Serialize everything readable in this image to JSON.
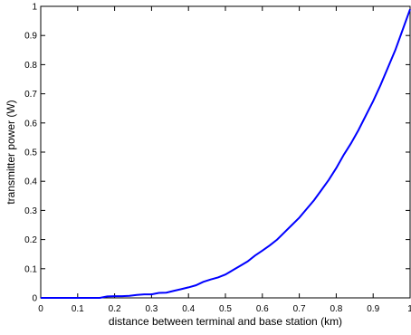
{
  "chart_data": {
    "type": "line",
    "title": "",
    "xlabel": "distance between terminal and base station (km)",
    "ylabel": "transmitter power (W)",
    "xlim": [
      0,
      1
    ],
    "ylim": [
      0,
      1
    ],
    "grid": false,
    "line_color": "#0000ff",
    "x_ticks": [
      0,
      0.1,
      0.2,
      0.3,
      0.4,
      0.5,
      0.6,
      0.7,
      0.8,
      0.9,
      1
    ],
    "x_tick_labels": [
      "0",
      "0.1",
      "0.2",
      "0.3",
      "0.4",
      "0.5",
      "0.6",
      "0.7",
      "0.8",
      "0.9",
      "1"
    ],
    "y_ticks": [
      0,
      0.1,
      0.2,
      0.3,
      0.4,
      0.5,
      0.6,
      0.7,
      0.8,
      0.9,
      1
    ],
    "y_tick_labels": [
      "0",
      "0.1",
      "0.2",
      "0.3",
      "0.4",
      "0.5",
      "0.6",
      "0.7",
      "0.8",
      "0.9",
      "1"
    ],
    "series": [
      {
        "x": [
          0,
          0.16,
          0.18,
          0.2,
          0.22,
          0.24,
          0.26,
          0.28,
          0.3,
          0.32,
          0.34,
          0.36,
          0.38,
          0.4,
          0.42,
          0.44,
          0.46,
          0.48,
          0.5,
          0.52,
          0.54,
          0.56,
          0.58,
          0.6,
          0.62,
          0.64,
          0.66,
          0.68,
          0.7,
          0.72,
          0.74,
          0.76,
          0.78,
          0.8,
          0.82,
          0.84,
          0.86,
          0.88,
          0.9,
          0.92,
          0.94,
          0.96,
          0.98,
          1.0
        ],
        "y": [
          0,
          0,
          0.005,
          0.006,
          0.006,
          0.007,
          0.01,
          0.012,
          0.012,
          0.017,
          0.018,
          0.024,
          0.03,
          0.036,
          0.043,
          0.055,
          0.063,
          0.07,
          0.08,
          0.095,
          0.11,
          0.125,
          0.145,
          0.162,
          0.18,
          0.2,
          0.225,
          0.25,
          0.275,
          0.305,
          0.335,
          0.37,
          0.405,
          0.445,
          0.49,
          0.53,
          0.575,
          0.625,
          0.675,
          0.73,
          0.79,
          0.85,
          0.92,
          0.99
        ]
      }
    ]
  }
}
